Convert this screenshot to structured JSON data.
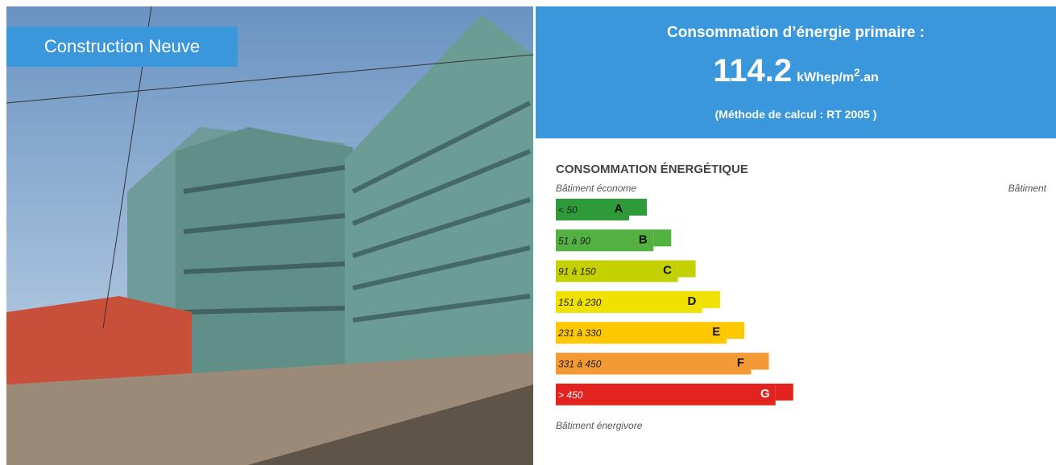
{
  "photo_badge": "Construction Neuve",
  "header": {
    "title": "Consommation d’énergie primaire :",
    "value": "114.2",
    "unit": "kWhep/m",
    "unit_sup": "2",
    "unit_suffix": ".an",
    "method": "(Méthode de calcul : RT 2005 )"
  },
  "energy_label": {
    "title": "CONSOMMATION ÉNERGÉTIQUE",
    "top_note": "Bâtiment économe",
    "right_note": "Bâtiment",
    "bottom_note": "Bâtiment énergivore",
    "classes": [
      {
        "range": "< 50",
        "letter": "A",
        "color": "#2e9a3a"
      },
      {
        "range": "51 à 90",
        "letter": "B",
        "color": "#52b140"
      },
      {
        "range": "91 à 150",
        "letter": "C",
        "color": "#c5d000"
      },
      {
        "range": "151 à 230",
        "letter": "D",
        "color": "#f0e100"
      },
      {
        "range": "231 à 330",
        "letter": "E",
        "color": "#fdc800"
      },
      {
        "range": "331 à 450",
        "letter": "F",
        "color": "#f39a36"
      },
      {
        "range": "> 450",
        "letter": "G",
        "color": "#e2231f"
      }
    ]
  }
}
